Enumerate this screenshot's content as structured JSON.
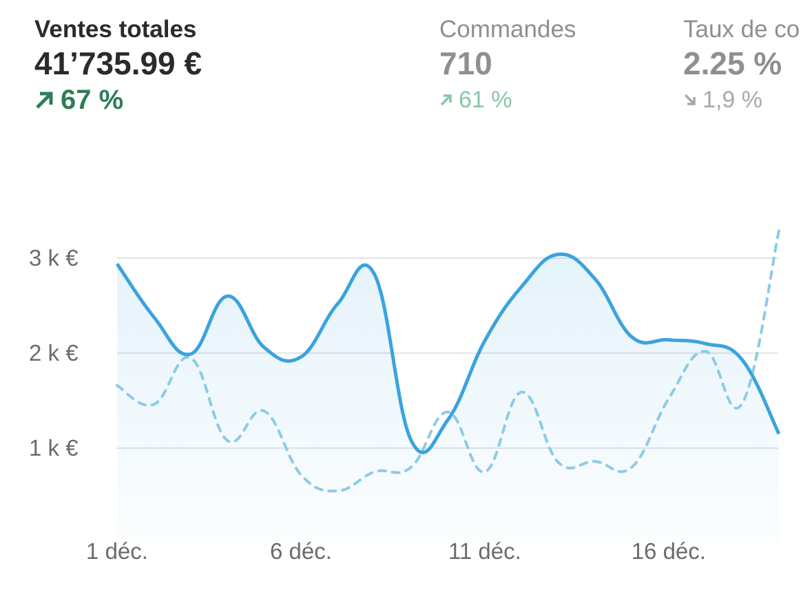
{
  "kpis": [
    {
      "title": "Ventes totales",
      "value": "41’735.99 €",
      "delta": "67 %",
      "trend": "up",
      "icon": "arrow-up-right-icon"
    },
    {
      "title": "Commandes",
      "value": "710",
      "delta": "61 %",
      "trend": "up",
      "icon": "arrow-up-right-icon"
    },
    {
      "title": "Taux de co",
      "value": "2.25 %",
      "delta": "1,9 %",
      "trend": "down",
      "icon": "arrow-down-right-icon"
    }
  ],
  "colors": {
    "primary": "#3aa3de",
    "comparison": "#8ccbe6",
    "positive": "#2e7d57",
    "grid": "#e3e3e3"
  },
  "chart_data": {
    "type": "line",
    "x": [
      "1 déc.",
      "2 déc.",
      "3 déc.",
      "4 déc.",
      "5 déc.",
      "6 déc.",
      "7 déc.",
      "8 déc.",
      "9 déc.",
      "10 déc.",
      "11 déc.",
      "12 déc.",
      "13 déc.",
      "14 déc.",
      "15 déc.",
      "16 déc.",
      "17 déc.",
      "18 déc.",
      "19 déc."
    ],
    "xticks": [
      "1 déc.",
      "6 déc.",
      "11 déc.",
      "16 déc."
    ],
    "yticks": [
      {
        "value": 1000,
        "label": "1 k €"
      },
      {
        "value": 2000,
        "label": "2 k €"
      },
      {
        "value": 3000,
        "label": "3 k €"
      }
    ],
    "ylim": [
      0,
      3400
    ],
    "grid": true,
    "series": [
      {
        "style": "solid",
        "area": true,
        "values": [
          2940,
          2380,
          1990,
          2600,
          2060,
          1960,
          2520,
          2830,
          1080,
          1300,
          2130,
          2700,
          3040,
          2780,
          2170,
          2140,
          2100,
          1930,
          1150
        ]
      },
      {
        "style": "dashed",
        "values": [
          1660,
          1460,
          1950,
          1080,
          1390,
          720,
          550,
          750,
          800,
          1380,
          750,
          1590,
          850,
          860,
          800,
          1520,
          2020,
          1470,
          3290
        ]
      }
    ]
  }
}
